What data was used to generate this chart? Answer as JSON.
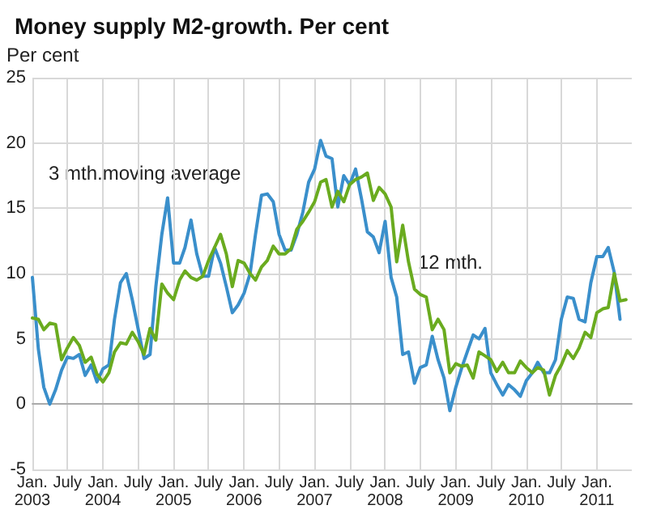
{
  "chart_data": {
    "type": "line",
    "title": "Money supply M2-growth. Per cent",
    "ylabel": "Per cent",
    "x": [
      "2003-01",
      "2003-02",
      "2003-03",
      "2003-04",
      "2003-05",
      "2003-06",
      "2003-07",
      "2003-08",
      "2003-09",
      "2003-10",
      "2003-11",
      "2003-12",
      "2004-01",
      "2004-02",
      "2004-03",
      "2004-04",
      "2004-05",
      "2004-06",
      "2004-07",
      "2004-08",
      "2004-09",
      "2004-10",
      "2004-11",
      "2004-12",
      "2005-01",
      "2005-02",
      "2005-03",
      "2005-04",
      "2005-05",
      "2005-06",
      "2005-07",
      "2005-08",
      "2005-09",
      "2005-10",
      "2005-11",
      "2005-12",
      "2006-01",
      "2006-02",
      "2006-03",
      "2006-04",
      "2006-05",
      "2006-06",
      "2006-07",
      "2006-08",
      "2006-09",
      "2006-10",
      "2006-11",
      "2006-12",
      "2007-01",
      "2007-02",
      "2007-03",
      "2007-04",
      "2007-05",
      "2007-06",
      "2007-07",
      "2007-08",
      "2007-09",
      "2007-10",
      "2007-11",
      "2007-12",
      "2008-01",
      "2008-02",
      "2008-03",
      "2008-04",
      "2008-05",
      "2008-06",
      "2008-07",
      "2008-08",
      "2008-09",
      "2008-10",
      "2008-11",
      "2008-12",
      "2009-01",
      "2009-02",
      "2009-03",
      "2009-04",
      "2009-05",
      "2009-06",
      "2009-07",
      "2009-08",
      "2009-09",
      "2009-10",
      "2009-11",
      "2009-12",
      "2010-01",
      "2010-02",
      "2010-03",
      "2010-04",
      "2010-05",
      "2010-06",
      "2010-07",
      "2010-08",
      "2010-09",
      "2010-10",
      "2010-11",
      "2010-12",
      "2011-01",
      "2011-02",
      "2011-03",
      "2011-04",
      "2011-05",
      "2011-06"
    ],
    "series": [
      {
        "name": "3 mth.moving average",
        "color": "#3a8fcb",
        "values": [
          9.7,
          4.2,
          1.3,
          0,
          1.1,
          2.6,
          3.6,
          3.5,
          3.8,
          2.2,
          3.0,
          1.7,
          2.7,
          3.0,
          6.5,
          9.3,
          10.0,
          8.0,
          5.8,
          3.5,
          3.8,
          9.0,
          13.0,
          15.8,
          10.8,
          10.8,
          12.0,
          14.1,
          11.5,
          9.8,
          9.8,
          12.0,
          10.8,
          9.0,
          7.0,
          7.6,
          8.5,
          10.0,
          13.0,
          16.0,
          16.1,
          15.5,
          13.0,
          11.8,
          11.8,
          13.0,
          14.7,
          17.0,
          18.0,
          20.2,
          19.0,
          18.8,
          15.1,
          17.5,
          16.8,
          18.0,
          15.7,
          13.2,
          12.8,
          11.6,
          14.0,
          9.7,
          8.2,
          3.8,
          4.0,
          1.6,
          2.8,
          3.0,
          5.2,
          3.4,
          2.0,
          -0.5,
          1.3,
          2.8,
          4.0,
          5.3,
          5.0,
          5.8,
          2.4,
          1.5,
          0.7,
          1.5,
          1.1,
          0.6,
          1.8,
          2.4,
          3.2,
          2.4,
          2.4,
          3.4,
          6.5,
          8.2,
          8.1,
          6.5,
          6.3,
          9.3,
          11.3,
          11.3,
          12.0,
          10.1,
          6.5,
          null
        ]
      },
      {
        "name": "12 mth.",
        "color": "#6aab1f",
        "values": [
          6.6,
          6.5,
          5.7,
          6.2,
          6.1,
          3.4,
          4.3,
          5.1,
          4.5,
          3.2,
          3.6,
          2.3,
          1.7,
          2.4,
          4.0,
          4.7,
          4.6,
          5.5,
          4.8,
          3.8,
          5.8,
          4.9,
          9.2,
          8.5,
          8.0,
          9.5,
          10.2,
          9.7,
          9.5,
          9.8,
          11.0,
          12.0,
          13.0,
          11.5,
          9.0,
          11.0,
          10.8,
          10.0,
          9.5,
          10.5,
          11.0,
          12.1,
          11.5,
          11.5,
          11.9,
          13.4,
          14.0,
          14.7,
          15.5,
          17.0,
          17.2,
          15.1,
          16.3,
          15.5,
          16.8,
          17.2,
          17.4,
          17.7,
          15.6,
          16.6,
          16.1,
          15.1,
          10.9,
          13.7,
          10.9,
          8.8,
          8.4,
          8.2,
          5.7,
          6.5,
          5.7,
          2.4,
          3.1,
          2.9,
          3.0,
          2.0,
          4.0,
          3.7,
          3.4,
          2.5,
          3.2,
          2.4,
          2.4,
          3.3,
          2.8,
          2.4,
          2.8,
          2.6,
          0.7,
          2.2,
          3.0,
          4.1,
          3.5,
          4.3,
          5.5,
          5.1,
          7.0,
          7.3,
          7.4,
          10.0,
          7.9,
          8.0
        ]
      }
    ],
    "xlim": [
      "2003-01",
      "2011-07"
    ],
    "xticks": [
      {
        "value": "2003-01",
        "label": "Jan.\n2003"
      },
      {
        "value": "2003-07",
        "label": "July"
      },
      {
        "value": "2004-01",
        "label": "Jan.\n2004"
      },
      {
        "value": "2004-07",
        "label": "July"
      },
      {
        "value": "2005-01",
        "label": "Jan.\n2005"
      },
      {
        "value": "2005-07",
        "label": "July"
      },
      {
        "value": "2006-01",
        "label": "Jan.\n2006"
      },
      {
        "value": "2006-07",
        "label": "July"
      },
      {
        "value": "2007-01",
        "label": "Jan.\n2007"
      },
      {
        "value": "2007-07",
        "label": "July"
      },
      {
        "value": "2008-01",
        "label": "Jan.\n2008"
      },
      {
        "value": "2008-07",
        "label": "July"
      },
      {
        "value": "2009-01",
        "label": "Jan.\n2009"
      },
      {
        "value": "2009-07",
        "label": "July"
      },
      {
        "value": "2010-01",
        "label": "Jan.\n2010"
      },
      {
        "value": "2010-07",
        "label": "July"
      },
      {
        "value": "2011-01",
        "label": "Jan.\n2011"
      }
    ],
    "ylim": [
      -5,
      25
    ],
    "yticks": [
      -5,
      0,
      5,
      10,
      15,
      20,
      25
    ],
    "grid": true,
    "legend": false,
    "marker": "none",
    "line_style": "solid"
  }
}
